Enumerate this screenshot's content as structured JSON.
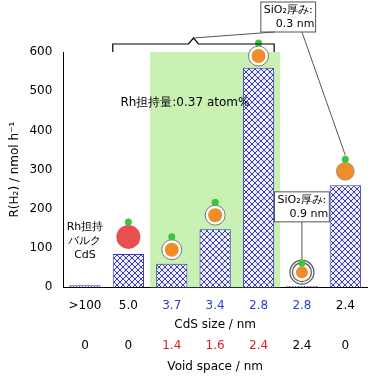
{
  "chart_data": {
    "type": "bar",
    "categories": [
      ">100",
      "5.0",
      "3.7",
      "3.4",
      "2.8",
      "2.8",
      "2.4"
    ],
    "values": [
      5,
      85,
      60,
      148,
      560,
      3,
      260
    ],
    "color": "#3a3ab8",
    "x_label": "CdS size / nm",
    "y_label": "R(H₂) / nmol h⁻¹",
    "ylim": [
      0,
      600
    ],
    "yticks": [
      0,
      100,
      200,
      300,
      400,
      500,
      600
    ],
    "grid": false,
    "void_space": {
      "label": "Void space / nm",
      "values": [
        0,
        0,
        1.4,
        1.6,
        2.4,
        2.4,
        0
      ]
    },
    "annotations": {
      "loading": "Rh担持量:0.37 atom%",
      "bulk": "Rh担持バルクCdS",
      "shell_thin": "SiO₂厚み: 0.3 nm",
      "shell_thick": "SiO₂厚み: 0.9 nm"
    }
  }
}
